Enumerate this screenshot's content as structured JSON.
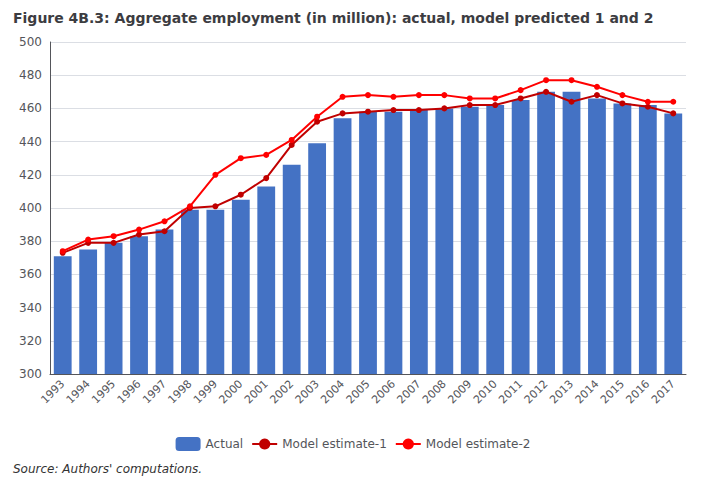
{
  "chart_data": {
    "type": "bar",
    "title": "Figure 4B.3: Aggregate employment (in million): actual, model predicted 1 and 2",
    "annotations": [
      "Source: Authors' computations."
    ],
    "categories": [
      "1993",
      "1994",
      "1995",
      "1996",
      "1997",
      "1998",
      "1999",
      "2000",
      "2001",
      "2002",
      "2003",
      "2004",
      "2005",
      "2006",
      "2007",
      "2008",
      "2009",
      "2010",
      "2011",
      "2012",
      "2013",
      "2014",
      "2015",
      "2016",
      "2017"
    ],
    "series": [
      {
        "name": "Actual",
        "type": "bar",
        "color": "#4472C4",
        "values": [
          371,
          375,
          379,
          383,
          387,
          399,
          399,
          405,
          413,
          426,
          439,
          454,
          458,
          458,
          459,
          460,
          461,
          462,
          465,
          470,
          470,
          466,
          463,
          462,
          457
        ]
      },
      {
        "name": "Model estimate-1",
        "type": "line",
        "color": "#C00000",
        "marker": "circle",
        "values": [
          373,
          379,
          379,
          384,
          386,
          400,
          401,
          408,
          418,
          438,
          452,
          457,
          458,
          459,
          459,
          460,
          462,
          462,
          466,
          470,
          464,
          468,
          463,
          461,
          457
        ]
      },
      {
        "name": "Model estimate-2",
        "type": "line",
        "color": "#FF0000",
        "marker": "circle",
        "values": [
          374,
          381,
          383,
          387,
          392,
          401,
          420,
          430,
          432,
          441,
          455,
          467,
          468,
          467,
          468,
          468,
          466,
          466,
          471,
          477,
          477,
          473,
          468,
          464,
          464
        ]
      }
    ],
    "ylim": [
      300,
      500
    ],
    "yticks": [
      300,
      320,
      340,
      360,
      380,
      400,
      420,
      440,
      460,
      480,
      500
    ],
    "grid": true,
    "legend": "bottom"
  }
}
